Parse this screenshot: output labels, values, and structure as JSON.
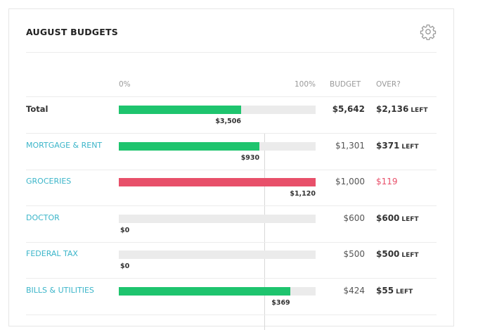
{
  "header": {
    "title": "AUGUST BUDGETS"
  },
  "columns": {
    "min": "0%",
    "max": "100%",
    "budget": "BUDGET",
    "over": "OVER?"
  },
  "table": {
    "rows": [
      {
        "label": "Total",
        "spent": 3506,
        "spent_label": "$3,506",
        "budget": 5642,
        "budget_label": "$5,642",
        "remaining": "$2,136",
        "status": "LEFT",
        "color": "#1ec46e"
      },
      {
        "label": "MORTGAGE & RENT",
        "spent": 930,
        "spent_label": "$930",
        "budget": 1301,
        "budget_label": "$1,301",
        "remaining": "$371",
        "status": "LEFT",
        "color": "#1ec46e"
      },
      {
        "label": "GROCERIES",
        "spent": 1120,
        "spent_label": "$1,120",
        "budget": 1000,
        "budget_label": "$1,000",
        "remaining": "$119",
        "color": "#e8506a",
        "remaining_color": "#e8506a"
      },
      {
        "label": "DOCTOR",
        "spent": 0,
        "spent_label": "$0",
        "budget": 600,
        "budget_label": "$600",
        "remaining": "$600",
        "status": "LEFT",
        "color": "#1ec46e"
      },
      {
        "label": "FEDERAL TAX",
        "spent": 0,
        "spent_label": "$0",
        "budget": 500,
        "budget_label": "$500",
        "remaining": "$500",
        "status": "LEFT",
        "color": "#1ec46e"
      },
      {
        "label": "BILLS & UTILITIES",
        "spent": 369,
        "spent_label": "$369",
        "budget": 424,
        "budget_label": "$424",
        "remaining": "$55",
        "status": "LEFT",
        "color": "#1ec46e"
      }
    ]
  }
}
